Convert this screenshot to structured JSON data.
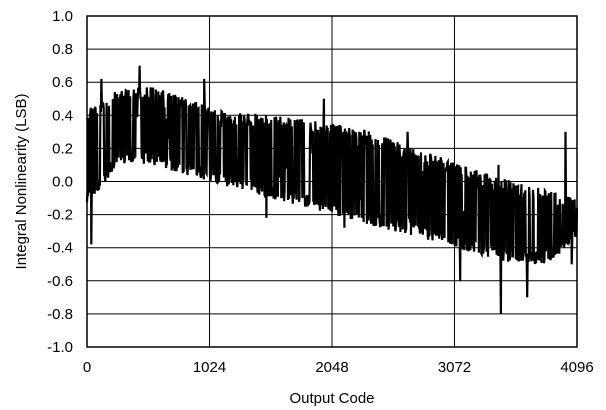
{
  "chart_data": {
    "type": "line",
    "title": "",
    "xlabel": "Output Code",
    "ylabel": "Integral Nonlinearity (LSB)",
    "xlim": [
      0,
      4096
    ],
    "ylim": [
      -1.0,
      1.0
    ],
    "xticks": [
      0,
      1024,
      2048,
      3072,
      4096
    ],
    "xtick_labels": [
      "0",
      "1024",
      "2048",
      "3072",
      "4096"
    ],
    "yticks": [
      -1.0,
      -0.8,
      -0.6,
      -0.4,
      -0.2,
      0.0,
      0.2,
      0.4,
      0.6,
      0.8,
      1.0
    ],
    "ytick_labels": [
      "-1.0",
      "-0.8",
      "-0.6",
      "-0.4",
      "-0.2",
      "0.0",
      "0.2",
      "0.4",
      "0.6",
      "0.8",
      "1.0"
    ],
    "grid": true,
    "legend": "none",
    "series": [
      {
        "color": "#000000",
        "x": [
          0,
          256,
          512,
          768,
          1024,
          1280,
          1536,
          1792,
          2048,
          2304,
          2560,
          2816,
          3072,
          3328,
          3584,
          3840,
          4096
        ],
        "y_upper": [
          0.45,
          0.55,
          0.58,
          0.52,
          0.45,
          0.42,
          0.4,
          0.38,
          0.35,
          0.32,
          0.25,
          0.18,
          0.12,
          0.05,
          0.0,
          -0.05,
          -0.1
        ],
        "y_lower": [
          -0.15,
          0.1,
          0.1,
          0.05,
          0.0,
          -0.05,
          -0.1,
          -0.15,
          -0.2,
          -0.25,
          -0.3,
          -0.35,
          -0.4,
          -0.45,
          -0.5,
          -0.5,
          -0.35
        ],
        "spikes": [
          {
            "x": 20,
            "y": 0.3
          },
          {
            "x": 35,
            "y": -0.38
          },
          {
            "x": 120,
            "y": 0.62
          },
          {
            "x": 440,
            "y": 0.7
          },
          {
            "x": 980,
            "y": 0.62
          },
          {
            "x": 1500,
            "y": -0.22
          },
          {
            "x": 1980,
            "y": 0.5
          },
          {
            "x": 2150,
            "y": -0.28
          },
          {
            "x": 2680,
            "y": 0.3
          },
          {
            "x": 3120,
            "y": -0.6
          },
          {
            "x": 3440,
            "y": 0.1
          },
          {
            "x": 3460,
            "y": -0.8
          },
          {
            "x": 3680,
            "y": -0.7
          },
          {
            "x": 4000,
            "y": 0.3
          },
          {
            "x": 4050,
            "y": -0.5
          }
        ]
      }
    ]
  }
}
